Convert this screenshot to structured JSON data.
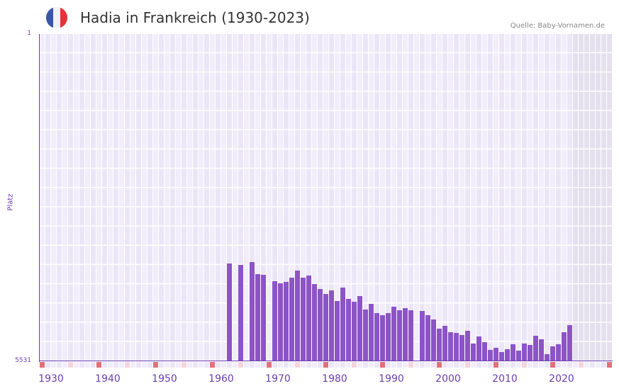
{
  "header": {
    "title": "Hadia in Frankreich (1930-2023)",
    "source": "Quelle: Baby-Vornamen.de",
    "flag_colors": [
      "#3a56a4",
      "#f2f2f6",
      "#e8313a"
    ]
  },
  "colors": {
    "bar": "#8c54c6",
    "axis": "#6a3fb0",
    "grid_bg_a": "#f1edfa",
    "grid_bg_b": "#ebe6f7",
    "future_bg": "#e4e0ee",
    "decade_marker": "#e0707a",
    "half_decade_marker": "#f5d5dd"
  },
  "chart_data": {
    "type": "bar",
    "title": "Hadia in Frankreich (1930-2023)",
    "xlabel": "",
    "ylabel": "Platz",
    "y_inverted": true,
    "ylim": [
      1,
      5531
    ],
    "xlim": [
      1930,
      2030
    ],
    "y_ticks": [
      "1",
      "5531"
    ],
    "x_ticks": [
      "1930",
      "1940",
      "1950",
      "1960",
      "1970",
      "1980",
      "1990",
      "2000",
      "2010",
      "2020"
    ],
    "grid": true,
    "legend": null,
    "series": [
      {
        "name": "Platz",
        "points": [
          {
            "year": 1963,
            "rank": 3879
          },
          {
            "year": 1965,
            "rank": 3903
          },
          {
            "year": 1967,
            "rank": 3855
          },
          {
            "year": 1968,
            "rank": 4059
          },
          {
            "year": 1969,
            "rank": 4071
          },
          {
            "year": 1971,
            "rank": 4179
          },
          {
            "year": 1972,
            "rank": 4215
          },
          {
            "year": 1973,
            "rank": 4191
          },
          {
            "year": 1974,
            "rank": 4119
          },
          {
            "year": 1975,
            "rank": 3999
          },
          {
            "year": 1976,
            "rank": 4119
          },
          {
            "year": 1977,
            "rank": 4083
          },
          {
            "year": 1978,
            "rank": 4227
          },
          {
            "year": 1979,
            "rank": 4311
          },
          {
            "year": 1980,
            "rank": 4395
          },
          {
            "year": 1981,
            "rank": 4335
          },
          {
            "year": 1982,
            "rank": 4514
          },
          {
            "year": 1983,
            "rank": 4287
          },
          {
            "year": 1984,
            "rank": 4478
          },
          {
            "year": 1985,
            "rank": 4526
          },
          {
            "year": 1986,
            "rank": 4430
          },
          {
            "year": 1987,
            "rank": 4658
          },
          {
            "year": 1988,
            "rank": 4562
          },
          {
            "year": 1989,
            "rank": 4718
          },
          {
            "year": 1990,
            "rank": 4754
          },
          {
            "year": 1991,
            "rank": 4718
          },
          {
            "year": 1992,
            "rank": 4610
          },
          {
            "year": 1993,
            "rank": 4670
          },
          {
            "year": 1994,
            "rank": 4634
          },
          {
            "year": 1995,
            "rank": 4670
          },
          {
            "year": 1997,
            "rank": 4682
          },
          {
            "year": 1998,
            "rank": 4754
          },
          {
            "year": 1999,
            "rank": 4826
          },
          {
            "year": 2000,
            "rank": 4981
          },
          {
            "year": 2001,
            "rank": 4933
          },
          {
            "year": 2002,
            "rank": 5041
          },
          {
            "year": 2003,
            "rank": 5053
          },
          {
            "year": 2004,
            "rank": 5089
          },
          {
            "year": 2005,
            "rank": 5017
          },
          {
            "year": 2006,
            "rank": 5233
          },
          {
            "year": 2007,
            "rank": 5113
          },
          {
            "year": 2008,
            "rank": 5209
          },
          {
            "year": 2009,
            "rank": 5340
          },
          {
            "year": 2010,
            "rank": 5304
          },
          {
            "year": 2011,
            "rank": 5376
          },
          {
            "year": 2012,
            "rank": 5328
          },
          {
            "year": 2013,
            "rank": 5245
          },
          {
            "year": 2014,
            "rank": 5352
          },
          {
            "year": 2015,
            "rank": 5233
          },
          {
            "year": 2016,
            "rank": 5257
          },
          {
            "year": 2017,
            "rank": 5101
          },
          {
            "year": 2018,
            "rank": 5161
          },
          {
            "year": 2019,
            "rank": 5412
          },
          {
            "year": 2020,
            "rank": 5281
          },
          {
            "year": 2021,
            "rank": 5245
          },
          {
            "year": 2022,
            "rank": 5041
          },
          {
            "year": 2023,
            "rank": 4921
          }
        ]
      }
    ]
  }
}
